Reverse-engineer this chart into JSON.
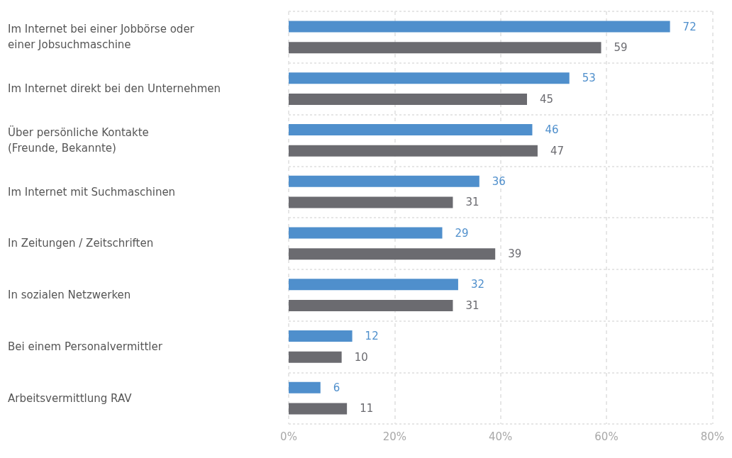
{
  "chart_data": {
    "type": "bar",
    "orientation": "horizontal",
    "categories": [
      "Im Internet bei einer Jobbörse oder\neiner Jobsuchmaschine",
      "Im Internet direkt bei den Unternehmen",
      "Über persönliche Kontakte\n(Freunde, Bekannte)",
      "Im Internet mit Suchmaschinen",
      "In Zeitungen / Zeitschriften",
      "In sozialen Netzwerken",
      "Bei einem Personalvermittler",
      "Arbeitsvermittlung RAV"
    ],
    "series": [
      {
        "color": "#4f8fcc",
        "values": [
          72,
          53,
          46,
          36,
          29,
          32,
          12,
          6
        ]
      },
      {
        "color": "#6b6b70",
        "values": [
          59,
          45,
          47,
          31,
          39,
          31,
          10,
          11
        ]
      }
    ],
    "xlim": [
      0,
      80
    ],
    "xticks": [
      {
        "value": 0,
        "label": "0%"
      },
      {
        "value": 20,
        "label": "20%"
      },
      {
        "value": 40,
        "label": "40%"
      },
      {
        "value": 60,
        "label": "60%"
      },
      {
        "value": 80,
        "label": "80%"
      }
    ],
    "grid": true,
    "data_labels": true
  }
}
